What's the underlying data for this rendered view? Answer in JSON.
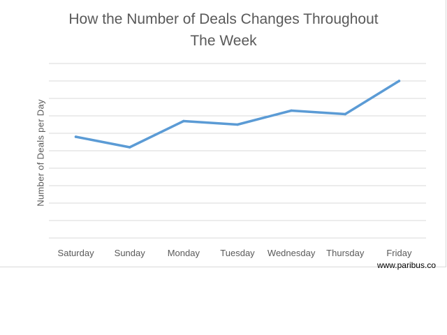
{
  "chart_data": {
    "type": "line",
    "title": "How the Number of Deals Changes Throughout\nThe Week",
    "xlabel": "",
    "ylabel": "Number of Deals per Day",
    "categories": [
      "Saturday",
      "Sunday",
      "Monday",
      "Tuesday",
      "Wednesday",
      "Thursday",
      "Friday"
    ],
    "series": [
      {
        "values": [
          5.8,
          5.2,
          6.7,
          6.5,
          7.3,
          7.1,
          9.0
        ],
        "color": "#5b9bd5"
      }
    ],
    "ylim": [
      0,
      10
    ],
    "grid": true,
    "gridline_color": "#d9d9d9",
    "legend": "none"
  },
  "watermark": "www.paribus.co"
}
